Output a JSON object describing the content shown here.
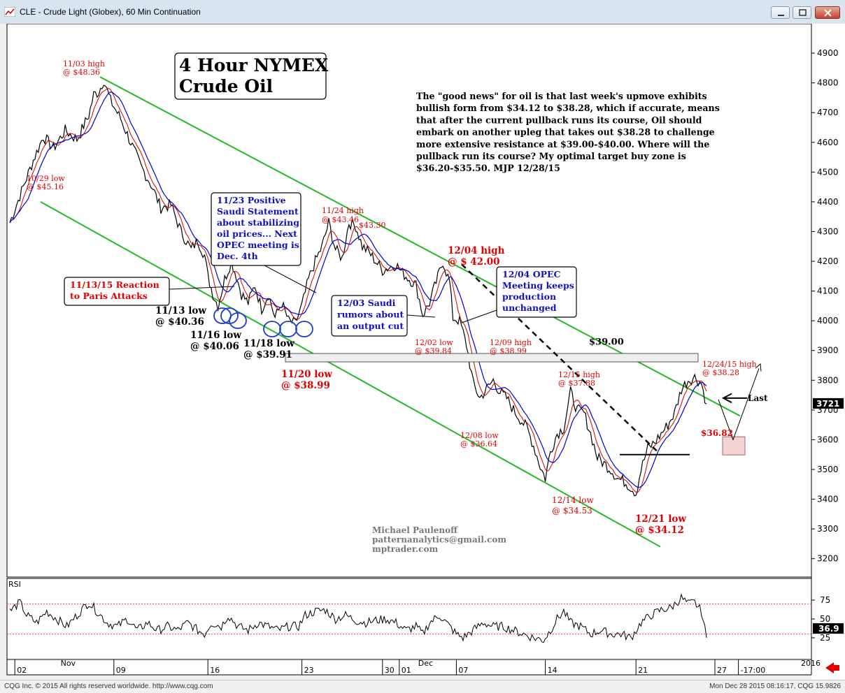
{
  "window": {
    "title": "CLE - Crude Light (Globex), 60 Min Continuation",
    "buttons": [
      "minimize-icon",
      "restore-icon",
      "close-icon"
    ]
  },
  "status": {
    "copyright": "CQG Inc. © 2015 All rights reserved worldwide. http://www.cqg.com",
    "timestamp": "Mon Dec 28 2015 08:16:17, CQG 15.9826"
  },
  "chart_data": {
    "type": "line",
    "title": "4 Hour NYMEX Crude Oil",
    "ylim": [
      3150,
      4980
    ],
    "y_ticks": [
      "4900",
      "4800",
      "4700",
      "4600",
      "4500",
      "4400",
      "4300",
      "4200",
      "4100",
      "4000",
      "3900",
      "3800",
      "3700",
      "3600",
      "3500",
      "3400",
      "3300",
      "3200"
    ],
    "last_price": "3721",
    "x_ticks": [
      {
        "label": "02",
        "i": 3
      },
      {
        "label": "09",
        "i": 62
      },
      {
        "label": "16",
        "i": 118
      },
      {
        "label": "23",
        "i": 174
      },
      {
        "label": "30",
        "i": 222
      },
      {
        "label": "01",
        "i": 232
      },
      {
        "label": "07",
        "i": 266
      },
      {
        "label": "14",
        "i": 319
      },
      {
        "label": "21",
        "i": 373
      },
      {
        "label": "27",
        "i": 420
      },
      {
        "label": "-17:00",
        "i": 434
      }
    ],
    "month_labels": [
      {
        "label": "Nov",
        "i": 29
      },
      {
        "label": "Dec",
        "i": 242
      },
      {
        "label": "2016",
        "i": 470
      }
    ],
    "price_anchors": [
      [
        0,
        4330
      ],
      [
        8,
        4450
      ],
      [
        14,
        4540
      ],
      [
        20,
        4620
      ],
      [
        26,
        4580
      ],
      [
        33,
        4640
      ],
      [
        40,
        4610
      ],
      [
        47,
        4690
      ],
      [
        50,
        4760
      ],
      [
        53,
        4770
      ],
      [
        56,
        4810
      ],
      [
        60,
        4740
      ],
      [
        66,
        4680
      ],
      [
        72,
        4600
      ],
      [
        78,
        4520
      ],
      [
        84,
        4460
      ],
      [
        90,
        4380
      ],
      [
        96,
        4390
      ],
      [
        102,
        4300
      ],
      [
        108,
        4240
      ],
      [
        112,
        4270
      ],
      [
        116,
        4220
      ],
      [
        118,
        4150
      ],
      [
        121,
        4090
      ],
      [
        124,
        4050
      ],
      [
        128,
        4140
      ],
      [
        132,
        4200
      ],
      [
        135,
        4150
      ],
      [
        138,
        4090
      ],
      [
        142,
        4060
      ],
      [
        146,
        4120
      ],
      [
        150,
        4040
      ],
      [
        154,
        4090
      ],
      [
        158,
        4010
      ],
      [
        162,
        4060
      ],
      [
        166,
        4000
      ],
      [
        170,
        3990
      ],
      [
        174,
        4050
      ],
      [
        178,
        4140
      ],
      [
        182,
        4200
      ],
      [
        186,
        4250
      ],
      [
        190,
        4330
      ],
      [
        194,
        4240
      ],
      [
        198,
        4210
      ],
      [
        202,
        4330
      ],
      [
        206,
        4320
      ],
      [
        210,
        4250
      ],
      [
        214,
        4230
      ],
      [
        218,
        4200
      ],
      [
        222,
        4170
      ],
      [
        226,
        4180
      ],
      [
        230,
        4190
      ],
      [
        234,
        4160
      ],
      [
        238,
        4140
      ],
      [
        242,
        4120
      ],
      [
        246,
        4020
      ],
      [
        250,
        4060
      ],
      [
        254,
        4130
      ],
      [
        258,
        4200
      ],
      [
        262,
        4130
      ],
      [
        264,
        4010
      ],
      [
        268,
        4000
      ],
      [
        272,
        3920
      ],
      [
        276,
        3790
      ],
      [
        280,
        3740
      ],
      [
        284,
        3770
      ],
      [
        288,
        3800
      ],
      [
        292,
        3760
      ],
      [
        296,
        3740
      ],
      [
        300,
        3700
      ],
      [
        304,
        3670
      ],
      [
        308,
        3640
      ],
      [
        312,
        3580
      ],
      [
        316,
        3510
      ],
      [
        319,
        3470
      ],
      [
        322,
        3560
      ],
      [
        326,
        3620
      ],
      [
        330,
        3640
      ],
      [
        334,
        3760
      ],
      [
        338,
        3700
      ],
      [
        342,
        3690
      ],
      [
        346,
        3620
      ],
      [
        350,
        3540
      ],
      [
        354,
        3520
      ],
      [
        358,
        3500
      ],
      [
        362,
        3470
      ],
      [
        366,
        3460
      ],
      [
        370,
        3440
      ],
      [
        373,
        3420
      ],
      [
        376,
        3500
      ],
      [
        380,
        3570
      ],
      [
        384,
        3590
      ],
      [
        388,
        3620
      ],
      [
        392,
        3650
      ],
      [
        396,
        3690
      ],
      [
        400,
        3770
      ],
      [
        404,
        3800
      ],
      [
        408,
        3810
      ],
      [
        412,
        3790
      ],
      [
        415,
        3720
      ]
    ],
    "rsi": {
      "ylim": [
        0,
        100
      ],
      "y_ticks": [
        "75",
        "50",
        "25"
      ],
      "last": "36.9",
      "levels": [
        70,
        30
      ],
      "anchors": [
        [
          0,
          60
        ],
        [
          6,
          72
        ],
        [
          10,
          55
        ],
        [
          16,
          45
        ],
        [
          22,
          60
        ],
        [
          28,
          50
        ],
        [
          34,
          40
        ],
        [
          40,
          55
        ],
        [
          47,
          72
        ],
        [
          52,
          60
        ],
        [
          58,
          45
        ],
        [
          64,
          40
        ],
        [
          70,
          50
        ],
        [
          76,
          35
        ],
        [
          82,
          45
        ],
        [
          88,
          35
        ],
        [
          94,
          40
        ],
        [
          100,
          35
        ],
        [
          106,
          45
        ],
        [
          112,
          35
        ],
        [
          116,
          30
        ],
        [
          120,
          45
        ],
        [
          126,
          40
        ],
        [
          130,
          55
        ],
        [
          136,
          40
        ],
        [
          142,
          35
        ],
        [
          148,
          45
        ],
        [
          154,
          40
        ],
        [
          160,
          35
        ],
        [
          166,
          40
        ],
        [
          172,
          40
        ],
        [
          176,
          55
        ],
        [
          182,
          60
        ],
        [
          188,
          62
        ],
        [
          194,
          50
        ],
        [
          200,
          55
        ],
        [
          206,
          48
        ],
        [
          212,
          45
        ],
        [
          218,
          48
        ],
        [
          224,
          50
        ],
        [
          230,
          45
        ],
        [
          236,
          35
        ],
        [
          242,
          40
        ],
        [
          246,
          30
        ],
        [
          250,
          45
        ],
        [
          256,
          55
        ],
        [
          262,
          40
        ],
        [
          266,
          30
        ],
        [
          270,
          25
        ],
        [
          276,
          35
        ],
        [
          282,
          45
        ],
        [
          288,
          40
        ],
        [
          294,
          40
        ],
        [
          300,
          35
        ],
        [
          306,
          30
        ],
        [
          312,
          25
        ],
        [
          318,
          22
        ],
        [
          322,
          35
        ],
        [
          326,
          50
        ],
        [
          330,
          60
        ],
        [
          334,
          45
        ],
        [
          340,
          40
        ],
        [
          346,
          30
        ],
        [
          352,
          35
        ],
        [
          358,
          30
        ],
        [
          364,
          30
        ],
        [
          370,
          25
        ],
        [
          376,
          45
        ],
        [
          382,
          55
        ],
        [
          388,
          62
        ],
        [
          394,
          65
        ],
        [
          400,
          78
        ],
        [
          404,
          70
        ],
        [
          408,
          72
        ],
        [
          412,
          60
        ],
        [
          415,
          25
        ]
      ]
    },
    "annotations": {
      "title_box": [
        "4 Hour NYMEX",
        "Crude Oil"
      ],
      "commentary": [
        "The \"good news\" for oil is that last week's upmove exhibits",
        "bullish form from $34.12 to $38.28, which if accurate, means",
        "that after the current pullback runs its course, Oil should",
        "embark on another upleg that takes out $38.28 to challenge",
        "more extensive resistance at $39.00-$40.00. Where will the",
        "pullback run its course? My optimal target buy zone is",
        "$36.20-$35.50.  MJP 12/28/15"
      ],
      "labels": {
        "nov03": [
          "11/03 high",
          "@ $48.36"
        ],
        "oct29": [
          "10/29 low",
          "@ $45.16"
        ],
        "nov24": [
          "11/24 high",
          "@ $43.46"
        ],
        "nov24b": "$43.30",
        "dec04": [
          "12/04 high",
          "@ $ 42.00"
        ],
        "dec02": [
          "12/02 low",
          "@ $39.84"
        ],
        "dec09": [
          "12/09 high",
          "@ $38.99"
        ],
        "dec15": [
          "12/15 high",
          "@ $37.88"
        ],
        "dec08": [
          "12/08 low",
          "@ $36.64"
        ],
        "dec14": [
          "12/14 low",
          "@ $34.53"
        ],
        "dec21": [
          "12/21 low",
          "@ $34.12"
        ],
        "dec24": [
          "12/24/15 high",
          "@ $38.28"
        ],
        "d3682": "$36.82",
        "nov13": [
          "11/13 low",
          "@ $40.36"
        ],
        "nov16": [
          "11/16 low",
          "@ $40.06"
        ],
        "nov18": [
          "11/18 low",
          "@ $39.91"
        ],
        "nov20": [
          "11/20 low",
          "@ $38.99"
        ],
        "res39": "$39.00",
        "last": "Last",
        "rsi": "RSI"
      },
      "callouts": {
        "paris": [
          "11/13/15 Reaction",
          "to Paris Attacks"
        ],
        "saudi": [
          "11/23 Positive",
          "Saudi Statement",
          "about stabilizing",
          "oil prices... Next",
          "OPEC meeting is",
          "Dec. 4th"
        ],
        "rumors": [
          "12/03 Saudi",
          "rumors about",
          "an output cut"
        ],
        "opec": [
          "12/04 OPEC",
          "Meeting keeps",
          "production",
          "unchanged"
        ]
      },
      "signature": [
        "Michael Paulenoff",
        "patternanalytics@gmail.com",
        "mptrader.com"
      ]
    },
    "colors": {
      "price": "#000000",
      "ma_fast": "#d00000",
      "ma_slow": "#0000d0",
      "channel": "#22bb22",
      "annotation_red": "#e00000",
      "annotation_blue": "#1010c0",
      "rsi_band": "#ff4040",
      "arrow_red": "#e00000"
    }
  }
}
